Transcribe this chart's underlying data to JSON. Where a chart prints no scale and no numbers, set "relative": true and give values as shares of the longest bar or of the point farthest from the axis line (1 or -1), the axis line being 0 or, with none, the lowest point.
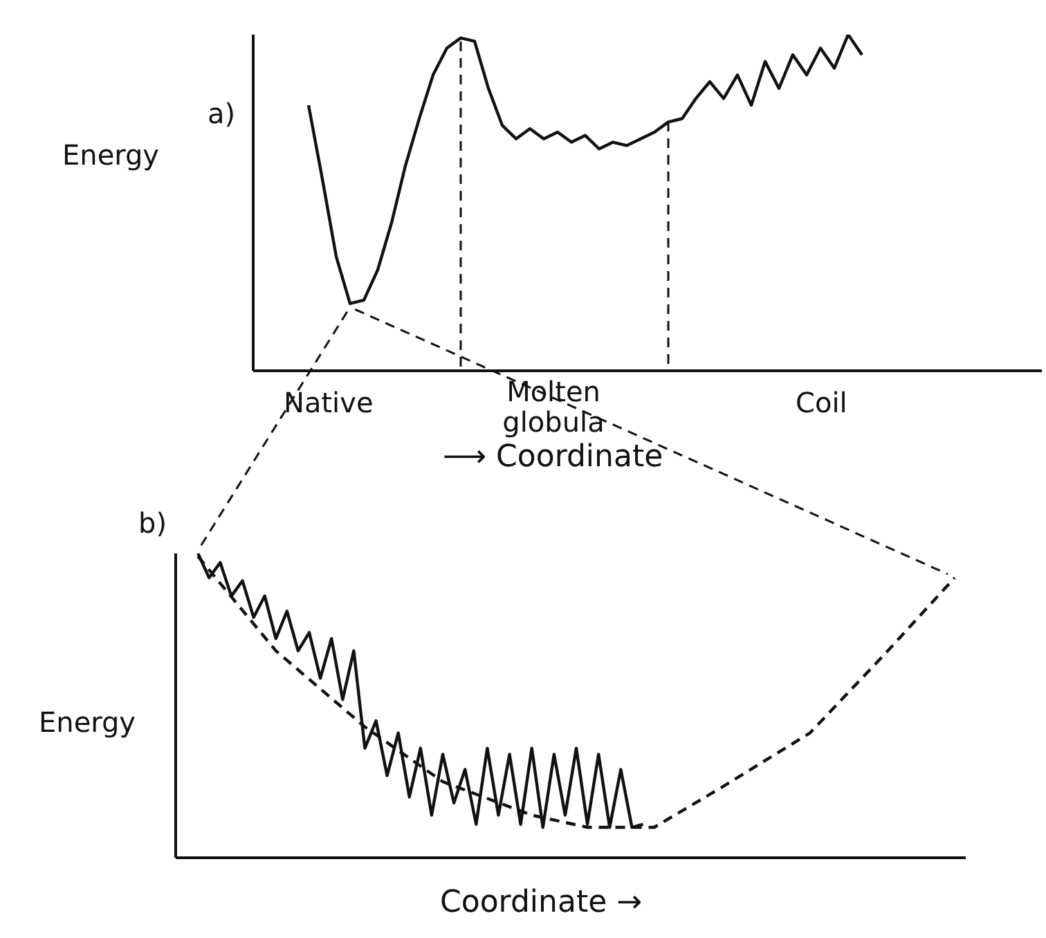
{
  "chart_data": [
    {
      "type": "line",
      "title": "a)",
      "ylabel": "Energy",
      "xlabel": "⟶ Coordinate",
      "relative": true,
      "marker": "none",
      "categories": [
        null,
        null,
        null,
        null,
        null,
        null,
        null,
        null,
        null,
        null,
        null,
        null,
        null,
        null,
        null,
        null,
        null,
        null,
        null,
        null,
        null,
        null,
        null,
        null,
        null,
        null,
        null,
        null,
        null,
        null,
        null,
        null,
        null,
        null,
        null,
        null,
        null,
        null,
        null,
        null,
        null,
        null,
        null,
        null,
        null,
        null,
        null,
        null,
        null,
        null,
        null,
        null,
        null,
        null,
        null,
        null,
        null,
        null
      ],
      "series": [
        {
          "color": "#111111",
          "line_style": "solid",
          "values": [
            null,
            null,
            null,
            null,
            0.79,
            0.57,
            0.34,
            0.2,
            0.21,
            0.3,
            0.44,
            0.61,
            0.75,
            0.88,
            0.96,
            0.99,
            0.98,
            0.84,
            0.73,
            0.69,
            0.72,
            0.69,
            0.71,
            0.68,
            0.7,
            0.66,
            0.68,
            0.67,
            0.69,
            0.71,
            0.74,
            0.75,
            0.81,
            0.86,
            0.81,
            0.88,
            0.79,
            0.92,
            0.84,
            0.94,
            0.88,
            0.96,
            0.9,
            1,
            0.94,
            null,
            null,
            null,
            null,
            null,
            null,
            null,
            null,
            null,
            null,
            null,
            null,
            null
          ]
        }
      ],
      "annotations": [
        "Native",
        "Molten globula",
        "Coil"
      ]
    },
    {
      "type": "line",
      "title": "b)",
      "ylabel": "Energy",
      "xlabel": "Coordinate →",
      "relative": true,
      "marker": "none",
      "categories": [
        null,
        null,
        null,
        null,
        null,
        null,
        null,
        null,
        null,
        null,
        null,
        null,
        null,
        null,
        null,
        null,
        null,
        null,
        null,
        null,
        null,
        null,
        null,
        null,
        null,
        null,
        null,
        null,
        null,
        null,
        null,
        null,
        null,
        null,
        null,
        null,
        null,
        null,
        null,
        null,
        null,
        null,
        null,
        null,
        null,
        null,
        null,
        null,
        null,
        null,
        null,
        null,
        null,
        null,
        null,
        null,
        null,
        null,
        null,
        null,
        null,
        null,
        null,
        null,
        null,
        null,
        null,
        null,
        null,
        null,
        null,
        null
      ],
      "series": [
        {
          "color": "#111111",
          "line_style": "solid",
          "values": [
            null,
            null,
            1,
            0.92,
            0.97,
            0.86,
            0.91,
            0.79,
            0.86,
            0.72,
            0.81,
            0.68,
            0.74,
            0.59,
            0.72,
            0.52,
            0.68,
            0.36,
            0.45,
            0.27,
            0.41,
            0.2,
            0.36,
            0.14,
            0.34,
            0.18,
            0.29,
            0.11,
            0.36,
            0.14,
            0.34,
            0.11,
            0.36,
            0.1,
            0.34,
            0.14,
            0.36,
            0.11,
            0.34,
            0.1,
            0.29,
            0.1,
            0.11,
            null,
            null,
            null,
            null,
            null,
            null,
            null,
            null,
            null,
            null,
            null,
            null,
            null,
            null,
            null,
            null,
            null,
            null,
            null,
            null,
            null,
            null,
            null,
            null,
            null,
            null,
            null,
            null,
            null
          ]
        },
        {
          "color": "#111111",
          "line_style": "dashed",
          "values": [
            null,
            null,
            0.99,
            null,
            null,
            null,
            null,
            null,
            null,
            0.68,
            null,
            null,
            null,
            null,
            null,
            null,
            null,
            0.43,
            null,
            null,
            null,
            null,
            null,
            null,
            0.25,
            null,
            null,
            null,
            null,
            null,
            null,
            null,
            0.14,
            null,
            null,
            null,
            null,
            0.1,
            null,
            null,
            null,
            null,
            null,
            0.1,
            null,
            null,
            null,
            null,
            null,
            0.23,
            null,
            null,
            null,
            null,
            null,
            null,
            null,
            0.41,
            null,
            null,
            null,
            null,
            null,
            null,
            0.68,
            null,
            null,
            null,
            null,
            null,
            0.92,
            null
          ]
        }
      ]
    }
  ]
}
